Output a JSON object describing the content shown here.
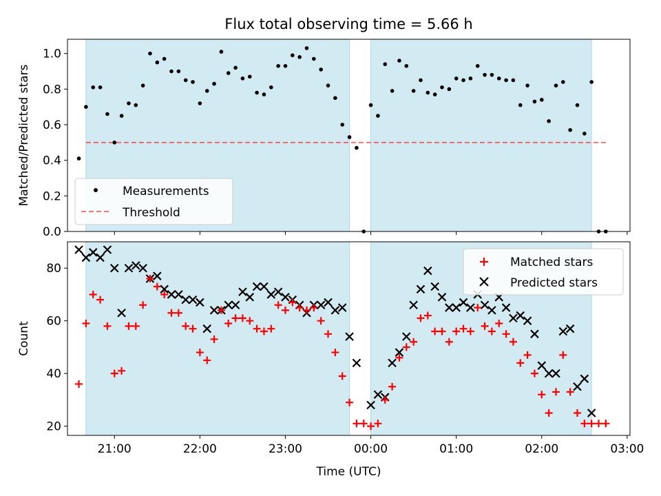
{
  "chart_data": [
    {
      "type": "scatter",
      "title": "Flux total observing time = 5.66 h",
      "xlabel": "",
      "ylabel": "Matched/Predicted stars",
      "ylim": [
        0,
        1.08
      ],
      "yticks": [
        0.0,
        0.2,
        0.4,
        0.6,
        0.8,
        1.0
      ],
      "ytick_labels": [
        "0.0",
        "0.2",
        "0.4",
        "0.6",
        "0.8",
        "1.0"
      ],
      "xlim": [
        "2024-01-01 20:27",
        "2024-01-02 03:02"
      ],
      "xticks": [
        "2024-01-01 21:00",
        "2024-01-01 22:00",
        "2024-01-01 23:00",
        "2024-01-02 00:00",
        "2024-01-02 01:00",
        "2024-01-02 02:00",
        "2024-01-02 03:00"
      ],
      "observing_windows": [
        [
          "2024-01-01 20:40",
          "2024-01-01 23:45"
        ],
        [
          "2024-01-02 00:00",
          "2024-01-02 02:35"
        ]
      ],
      "shading_color": "#add8e6",
      "threshold": 0.5,
      "threshold_range": [
        "2024-01-01 20:40",
        "2024-01-02 02:45"
      ],
      "legend": {
        "position": "lower-left",
        "entries": [
          "Measurements",
          "Threshold"
        ]
      },
      "series": [
        {
          "name": "Measurements",
          "marker": "dot",
          "color": "#000000",
          "x": [
            "2024-01-01 20:35",
            "2024-01-01 20:40",
            "2024-01-01 20:45",
            "2024-01-01 20:50",
            "2024-01-01 20:55",
            "2024-01-01 21:00",
            "2024-01-01 21:05",
            "2024-01-01 21:10",
            "2024-01-01 21:15",
            "2024-01-01 21:20",
            "2024-01-01 21:25",
            "2024-01-01 21:30",
            "2024-01-01 21:35",
            "2024-01-01 21:40",
            "2024-01-01 21:45",
            "2024-01-01 21:50",
            "2024-01-01 21:55",
            "2024-01-01 22:00",
            "2024-01-01 22:05",
            "2024-01-01 22:10",
            "2024-01-01 22:15",
            "2024-01-01 22:20",
            "2024-01-01 22:25",
            "2024-01-01 22:30",
            "2024-01-01 22:35",
            "2024-01-01 22:40",
            "2024-01-01 22:45",
            "2024-01-01 22:50",
            "2024-01-01 22:55",
            "2024-01-01 23:00",
            "2024-01-01 23:05",
            "2024-01-01 23:10",
            "2024-01-01 23:15",
            "2024-01-01 23:20",
            "2024-01-01 23:25",
            "2024-01-01 23:30",
            "2024-01-01 23:35",
            "2024-01-01 23:40",
            "2024-01-01 23:45",
            "2024-01-01 23:50",
            "2024-01-01 23:55",
            "2024-01-02 00:00",
            "2024-01-02 00:05",
            "2024-01-02 00:10",
            "2024-01-02 00:15",
            "2024-01-02 00:20",
            "2024-01-02 00:25",
            "2024-01-02 00:30",
            "2024-01-02 00:35",
            "2024-01-02 00:40",
            "2024-01-02 00:45",
            "2024-01-02 00:50",
            "2024-01-02 00:55",
            "2024-01-02 01:00",
            "2024-01-02 01:05",
            "2024-01-02 01:10",
            "2024-01-02 01:15",
            "2024-01-02 01:20",
            "2024-01-02 01:25",
            "2024-01-02 01:30",
            "2024-01-02 01:35",
            "2024-01-02 01:40",
            "2024-01-02 01:45",
            "2024-01-02 01:50",
            "2024-01-02 01:55",
            "2024-01-02 02:00",
            "2024-01-02 02:05",
            "2024-01-02 02:10",
            "2024-01-02 02:15",
            "2024-01-02 02:20",
            "2024-01-02 02:25",
            "2024-01-02 02:30",
            "2024-01-02 02:35",
            "2024-01-02 02:40",
            "2024-01-02 02:45"
          ],
          "y": [
            0.41,
            0.7,
            0.81,
            0.81,
            0.66,
            0.5,
            0.65,
            0.72,
            0.71,
            0.82,
            1.0,
            0.95,
            0.97,
            0.9,
            0.9,
            0.85,
            0.84,
            0.72,
            0.79,
            0.83,
            1.01,
            0.89,
            0.92,
            0.86,
            0.87,
            0.78,
            0.77,
            0.81,
            0.93,
            0.93,
            0.99,
            0.98,
            1.03,
            0.97,
            0.91,
            0.82,
            0.75,
            0.6,
            0.53,
            0.47,
            0.0,
            0.71,
            0.65,
            0.94,
            0.79,
            0.96,
            0.93,
            0.79,
            0.85,
            0.78,
            0.77,
            0.81,
            0.8,
            0.86,
            0.85,
            0.86,
            0.93,
            0.88,
            0.88,
            0.86,
            0.85,
            0.85,
            0.71,
            0.82,
            0.73,
            0.74,
            0.62,
            0.82,
            0.84,
            0.57,
            0.71,
            0.55,
            0.84,
            0.0,
            0.0
          ]
        }
      ]
    },
    {
      "type": "scatter",
      "title": "",
      "xlabel": "Time (UTC)",
      "ylabel": "Count",
      "ylim": [
        16.5,
        90
      ],
      "yticks": [
        20,
        40,
        60,
        80
      ],
      "ytick_labels": [
        "20",
        "40",
        "60",
        "80"
      ],
      "xlim": [
        "2024-01-01 20:27",
        "2024-01-02 03:02"
      ],
      "xticks": [
        "2024-01-01 21:00",
        "2024-01-01 22:00",
        "2024-01-01 23:00",
        "2024-01-02 00:00",
        "2024-01-02 01:00",
        "2024-01-02 02:00",
        "2024-01-02 03:00"
      ],
      "xtick_labels": [
        "21:00",
        "22:00",
        "23:00",
        "00:00",
        "01:00",
        "02:00",
        "03:00"
      ],
      "observing_windows": [
        [
          "2024-01-01 20:40",
          "2024-01-01 23:45"
        ],
        [
          "2024-01-02 00:00",
          "2024-01-02 02:35"
        ]
      ],
      "shading_color": "#add8e6",
      "legend": {
        "position": "upper-right",
        "entries": [
          "Matched stars",
          "Predicted stars"
        ]
      },
      "series": [
        {
          "name": "Matched stars",
          "marker": "plus",
          "color": "#ff0000",
          "x": [
            "2024-01-01 20:35",
            "2024-01-01 20:40",
            "2024-01-01 20:45",
            "2024-01-01 20:50",
            "2024-01-01 20:55",
            "2024-01-01 21:00",
            "2024-01-01 21:05",
            "2024-01-01 21:10",
            "2024-01-01 21:15",
            "2024-01-01 21:20",
            "2024-01-01 21:25",
            "2024-01-01 21:30",
            "2024-01-01 21:35",
            "2024-01-01 21:40",
            "2024-01-01 21:45",
            "2024-01-01 21:50",
            "2024-01-01 21:55",
            "2024-01-01 22:00",
            "2024-01-01 22:05",
            "2024-01-01 22:10",
            "2024-01-01 22:15",
            "2024-01-01 22:20",
            "2024-01-01 22:25",
            "2024-01-01 22:30",
            "2024-01-01 22:35",
            "2024-01-01 22:40",
            "2024-01-01 22:45",
            "2024-01-01 22:50",
            "2024-01-01 22:55",
            "2024-01-01 23:00",
            "2024-01-01 23:05",
            "2024-01-01 23:10",
            "2024-01-01 23:15",
            "2024-01-01 23:20",
            "2024-01-01 23:25",
            "2024-01-01 23:30",
            "2024-01-01 23:35",
            "2024-01-01 23:40",
            "2024-01-01 23:45",
            "2024-01-01 23:50",
            "2024-01-01 23:55",
            "2024-01-02 00:00",
            "2024-01-02 00:05",
            "2024-01-02 00:10",
            "2024-01-02 00:15",
            "2024-01-02 00:20",
            "2024-01-02 00:25",
            "2024-01-02 00:30",
            "2024-01-02 00:35",
            "2024-01-02 00:40",
            "2024-01-02 00:45",
            "2024-01-02 00:50",
            "2024-01-02 00:55",
            "2024-01-02 01:00",
            "2024-01-02 01:05",
            "2024-01-02 01:10",
            "2024-01-02 01:15",
            "2024-01-02 01:20",
            "2024-01-02 01:25",
            "2024-01-02 01:30",
            "2024-01-02 01:35",
            "2024-01-02 01:40",
            "2024-01-02 01:45",
            "2024-01-02 01:50",
            "2024-01-02 01:55",
            "2024-01-02 02:00",
            "2024-01-02 02:05",
            "2024-01-02 02:10",
            "2024-01-02 02:15",
            "2024-01-02 02:20",
            "2024-01-02 02:25",
            "2024-01-02 02:30",
            "2024-01-02 02:35",
            "2024-01-02 02:40",
            "2024-01-02 02:45"
          ],
          "y": [
            36,
            59,
            70,
            68,
            58,
            40,
            41,
            58,
            58,
            66,
            76,
            73,
            70,
            63,
            63,
            58,
            57,
            48,
            45,
            53,
            64,
            59,
            61,
            61,
            60,
            57,
            56,
            57,
            66,
            64,
            67,
            65,
            64,
            65,
            60,
            55,
            48,
            39,
            29,
            21,
            21,
            20,
            21,
            30,
            35,
            46,
            50,
            52,
            61,
            62,
            56,
            56,
            52,
            56,
            57,
            56,
            65,
            58,
            56,
            59,
            55,
            52,
            44,
            47,
            40,
            32,
            25,
            33,
            47,
            33,
            25,
            21,
            21,
            21,
            21
          ]
        },
        {
          "name": "Predicted stars",
          "marker": "x",
          "color": "#000000",
          "x": [
            "2024-01-01 20:35",
            "2024-01-01 20:40",
            "2024-01-01 20:45",
            "2024-01-01 20:50",
            "2024-01-01 20:55",
            "2024-01-01 21:00",
            "2024-01-01 21:05",
            "2024-01-01 21:10",
            "2024-01-01 21:15",
            "2024-01-01 21:20",
            "2024-01-01 21:25",
            "2024-01-01 21:30",
            "2024-01-01 21:35",
            "2024-01-01 21:40",
            "2024-01-01 21:45",
            "2024-01-01 21:50",
            "2024-01-01 21:55",
            "2024-01-01 22:00",
            "2024-01-01 22:05",
            "2024-01-01 22:10",
            "2024-01-01 22:15",
            "2024-01-01 22:20",
            "2024-01-01 22:25",
            "2024-01-01 22:30",
            "2024-01-01 22:35",
            "2024-01-01 22:40",
            "2024-01-01 22:45",
            "2024-01-01 22:50",
            "2024-01-01 22:55",
            "2024-01-01 23:00",
            "2024-01-01 23:05",
            "2024-01-01 23:10",
            "2024-01-01 23:15",
            "2024-01-01 23:20",
            "2024-01-01 23:25",
            "2024-01-01 23:30",
            "2024-01-01 23:35",
            "2024-01-01 23:40",
            "2024-01-01 23:45",
            "2024-01-01 23:50",
            "2024-01-02 00:00",
            "2024-01-02 00:05",
            "2024-01-02 00:10",
            "2024-01-02 00:15",
            "2024-01-02 00:20",
            "2024-01-02 00:25",
            "2024-01-02 00:30",
            "2024-01-02 00:35",
            "2024-01-02 00:40",
            "2024-01-02 00:45",
            "2024-01-02 00:50",
            "2024-01-02 00:55",
            "2024-01-02 01:00",
            "2024-01-02 01:05",
            "2024-01-02 01:10",
            "2024-01-02 01:15",
            "2024-01-02 01:20",
            "2024-01-02 01:25",
            "2024-01-02 01:30",
            "2024-01-02 01:35",
            "2024-01-02 01:40",
            "2024-01-02 01:45",
            "2024-01-02 01:50",
            "2024-01-02 01:55",
            "2024-01-02 02:00",
            "2024-01-02 02:05",
            "2024-01-02 02:10",
            "2024-01-02 02:15",
            "2024-01-02 02:20",
            "2024-01-02 02:25",
            "2024-01-02 02:30",
            "2024-01-02 02:35"
          ],
          "y": [
            87,
            84,
            86,
            84,
            87,
            80,
            63,
            80,
            81,
            80,
            76,
            77,
            72,
            70,
            70,
            68,
            68,
            67,
            57,
            64,
            64,
            66,
            66,
            71,
            69,
            73,
            73,
            70,
            71,
            69,
            68,
            66,
            63,
            66,
            66,
            67,
            64,
            65,
            54,
            44,
            28,
            32,
            31,
            44,
            48,
            54,
            66,
            72,
            79,
            73,
            69,
            65,
            65,
            67,
            65,
            70,
            66,
            64,
            69,
            65,
            61,
            62,
            60,
            55,
            43,
            40,
            40,
            56,
            57,
            35,
            38,
            25
          ]
        }
      ]
    }
  ]
}
